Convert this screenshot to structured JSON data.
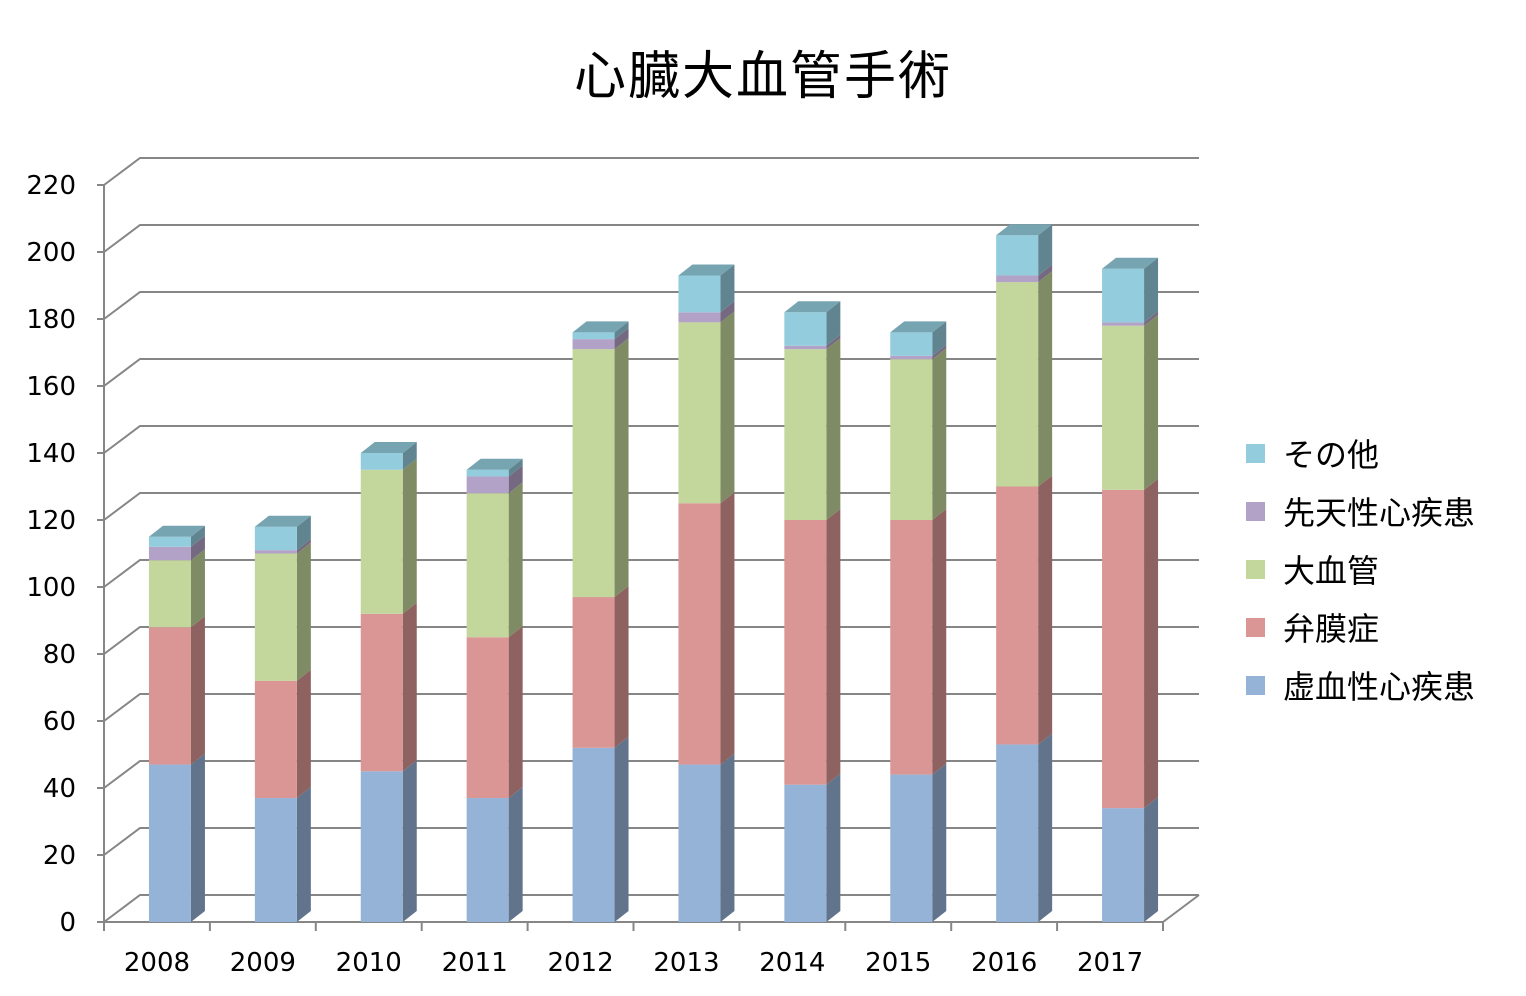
{
  "chart_data": {
    "type": "bar",
    "stacked": true,
    "three_d": true,
    "title": "心臓大血管手術",
    "xlabel": "",
    "ylabel": "",
    "ylim": [
      0,
      220
    ],
    "ytick_step": 20,
    "yticks": [
      "0",
      "20",
      "40",
      "60",
      "80",
      "100",
      "120",
      "140",
      "160",
      "180",
      "200",
      "220"
    ],
    "grid": true,
    "legend_position": "right",
    "categories": [
      "2008",
      "2009",
      "2010",
      "2011",
      "2012",
      "2013",
      "2014",
      "2015",
      "2016",
      "2017"
    ],
    "series": [
      {
        "name": "虚血性心疾患",
        "color": "#95b3d7",
        "values": [
          47,
          37,
          45,
          37,
          52,
          47,
          41,
          44,
          53,
          34
        ]
      },
      {
        "name": "弁膜症",
        "color": "#d99694",
        "values": [
          41,
          35,
          47,
          48,
          45,
          78,
          79,
          76,
          77,
          95
        ]
      },
      {
        "name": "大血管",
        "color": "#c3d69b",
        "values": [
          20,
          38,
          43,
          43,
          74,
          54,
          51,
          48,
          61,
          49
        ]
      },
      {
        "name": "先天性心疾患",
        "color": "#b3a2c7",
        "values": [
          4,
          1,
          0,
          5,
          3,
          3,
          1,
          1,
          2,
          1
        ]
      },
      {
        "name": "その他",
        "color": "#93cddd",
        "values": [
          3,
          7,
          5,
          2,
          2,
          11,
          10,
          7,
          12,
          16
        ]
      }
    ],
    "legend_order": [
      "その他",
      "先天性心疾患",
      "大血管",
      "弁膜症",
      "虚血性心疾患"
    ]
  }
}
